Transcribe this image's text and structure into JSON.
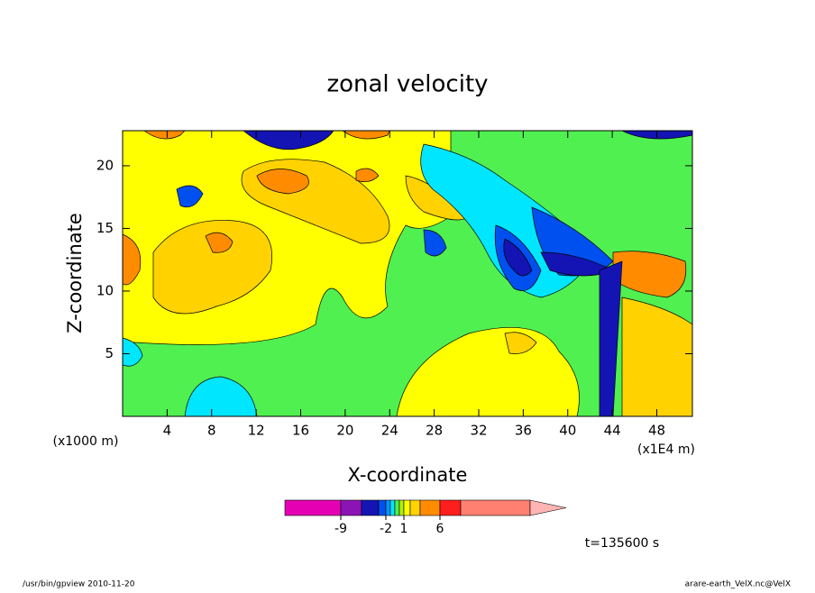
{
  "chart_data": {
    "type": "contour",
    "title": "zonal velocity",
    "x_label": "X-coordinate",
    "y_label": "Z-coordinate",
    "x_unit": "(x1000 m)",
    "x_unit2": "(x1E4 m)",
    "xlim": [
      0,
      51.2
    ],
    "xticks": [
      4,
      8,
      12,
      16,
      20,
      24,
      28,
      32,
      36,
      40,
      44,
      48
    ],
    "ylim": [
      0,
      22.8
    ],
    "yticks": [
      5,
      10,
      15,
      20
    ],
    "colorbar": {
      "colors": [
        "#e600b4",
        "#8c14b4",
        "#1414b4",
        "#0050f0",
        "#0096ff",
        "#00e6ff",
        "#50f050",
        "#b4f000",
        "#ffff00",
        "#ffd200",
        "#ff8c00",
        "#ff1e1e",
        "#ff8070",
        "#ffb4b4"
      ],
      "ticks": [
        -9,
        -2,
        1,
        6
      ]
    },
    "time_label": "t=135600 s",
    "footer_left": "/usr/bin/gpview  2010-11-20",
    "footer_right": "arare-earth_VelX.nc@VelX"
  }
}
